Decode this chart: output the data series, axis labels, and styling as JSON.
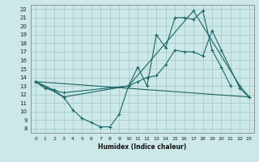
{
  "background_color": "#cce8e8",
  "grid_color": "#aacccc",
  "line_color": "#1a6666",
  "xlabel": "Humidex (Indice chaleur)",
  "xlim": [
    -0.5,
    23.5
  ],
  "ylim": [
    7.5,
    22.5
  ],
  "xticks": [
    0,
    1,
    2,
    3,
    4,
    5,
    6,
    7,
    8,
    9,
    10,
    11,
    12,
    13,
    14,
    15,
    16,
    17,
    18,
    19,
    20,
    21,
    22,
    23
  ],
  "yticks": [
    8,
    9,
    10,
    11,
    12,
    13,
    14,
    15,
    16,
    17,
    18,
    19,
    20,
    21,
    22
  ],
  "series": [
    {
      "x": [
        0,
        1,
        2,
        3,
        4,
        5,
        6,
        7,
        8,
        9,
        10,
        11,
        12,
        13,
        14,
        15,
        16,
        17,
        18,
        19,
        20,
        21
      ],
      "y": [
        13.5,
        12.7,
        12.5,
        11.7,
        10.2,
        9.2,
        8.7,
        8.2,
        8.2,
        9.7,
        13.0,
        15.2,
        13.0,
        19.0,
        17.5,
        21.0,
        21.0,
        20.8,
        21.8,
        17.2,
        15.2,
        13.0
      ],
      "markers": true
    },
    {
      "x": [
        0,
        2,
        3,
        10,
        11,
        12,
        13,
        14,
        15,
        16,
        17,
        18,
        19,
        20,
        22,
        23
      ],
      "y": [
        13.5,
        12.5,
        12.2,
        13.0,
        13.5,
        14.0,
        14.2,
        15.5,
        17.2,
        17.0,
        17.0,
        16.5,
        19.5,
        17.2,
        12.7,
        11.7
      ],
      "markers": true
    },
    {
      "x": [
        0,
        23
      ],
      "y": [
        13.5,
        11.7
      ],
      "markers": false
    },
    {
      "x": [
        0,
        3,
        10,
        17,
        22,
        23
      ],
      "y": [
        13.5,
        11.7,
        13.0,
        21.8,
        13.0,
        11.7
      ],
      "markers": true
    }
  ]
}
